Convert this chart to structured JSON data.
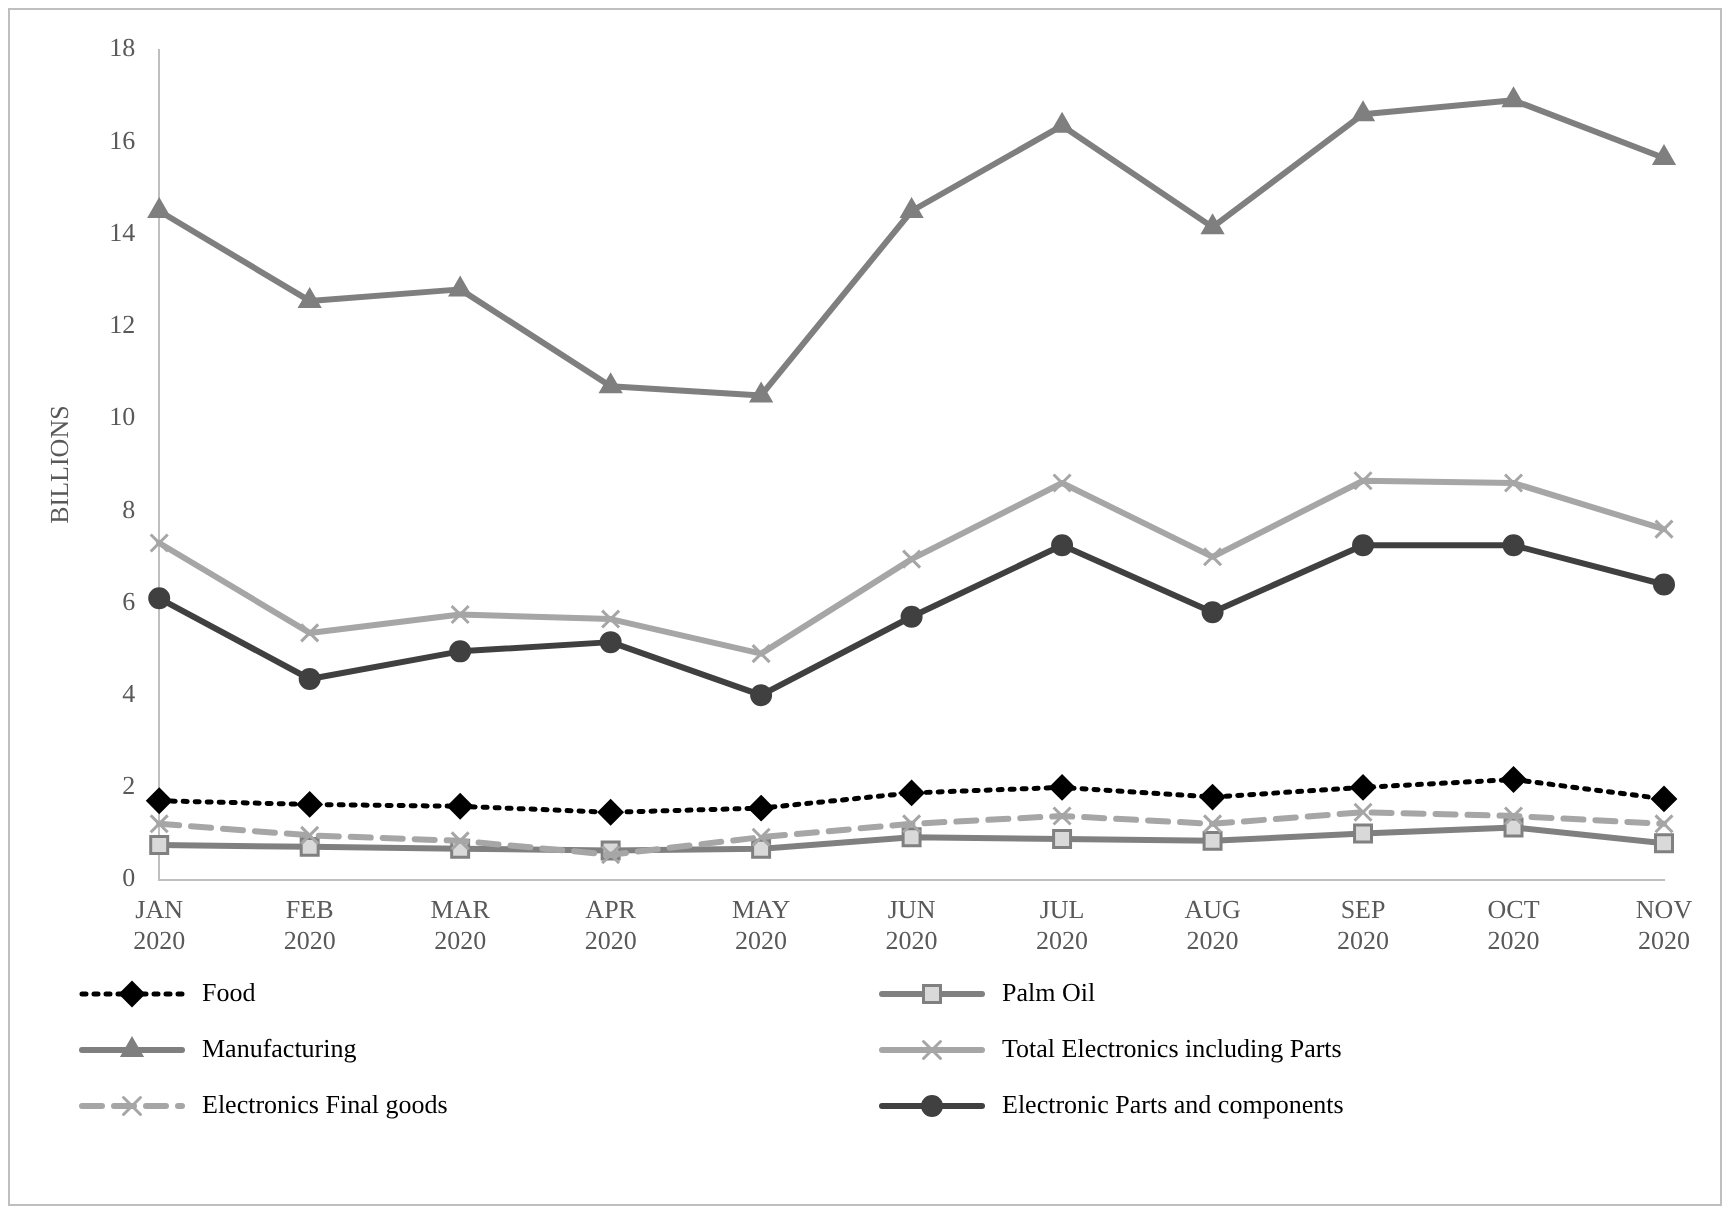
{
  "chart_data": {
    "type": "line",
    "ylabel": "BILLIONS",
    "categories": [
      "JAN 2020",
      "FEB 2020",
      "MAR 2020",
      "APR 2020",
      "MAY 2020",
      "JUN 2020",
      "JUL 2020",
      "AUG 2020",
      "SEP 2020",
      "OCT 2020",
      "NOV 2020"
    ],
    "series": [
      {
        "name": "Food",
        "color": "#000000",
        "marker": "diamond",
        "line_style": "dotted",
        "values": [
          1.71,
          1.63,
          1.59,
          1.46,
          1.55,
          1.88,
          2.0,
          1.79,
          2.0,
          2.17,
          1.75
        ]
      },
      {
        "name": "Palm Oil",
        "color": "#808080",
        "marker": "square",
        "line_style": "solid",
        "values": [
          0.75,
          0.71,
          0.67,
          0.63,
          0.67,
          0.92,
          0.88,
          0.84,
          1.0,
          1.13,
          0.79
        ]
      },
      {
        "name": "Manufacturing",
        "color": "#7f7f7f",
        "marker": "triangle",
        "line_style": "solid",
        "values": [
          14.5,
          12.55,
          12.8,
          10.7,
          10.5,
          14.5,
          16.35,
          14.15,
          16.6,
          16.9,
          15.65
        ]
      },
      {
        "name": "Total Electronics including Parts",
        "color": "#a6a6a6",
        "marker": "cross",
        "line_style": "solid",
        "values": [
          7.3,
          5.35,
          5.75,
          5.65,
          4.9,
          6.95,
          8.6,
          7.0,
          8.65,
          8.6,
          7.6
        ]
      },
      {
        "name": "Electronics Final goods",
        "color": "#a6a6a6",
        "marker": "cross",
        "line_style": "dashed",
        "values": [
          1.21,
          0.96,
          0.84,
          0.54,
          0.92,
          1.21,
          1.38,
          1.21,
          1.46,
          1.38,
          1.21
        ]
      },
      {
        "name": "Electronic Parts and components",
        "color": "#404040",
        "marker": "circle",
        "line_style": "solid",
        "values": [
          6.1,
          4.35,
          4.95,
          5.15,
          4.0,
          5.7,
          7.25,
          5.8,
          7.25,
          7.25,
          6.4
        ]
      }
    ],
    "ylim": [
      0,
      18
    ],
    "yticks": [
      0,
      2,
      4,
      6,
      8,
      10,
      12,
      14,
      16,
      18
    ],
    "grid": false,
    "legend": "bottom"
  }
}
